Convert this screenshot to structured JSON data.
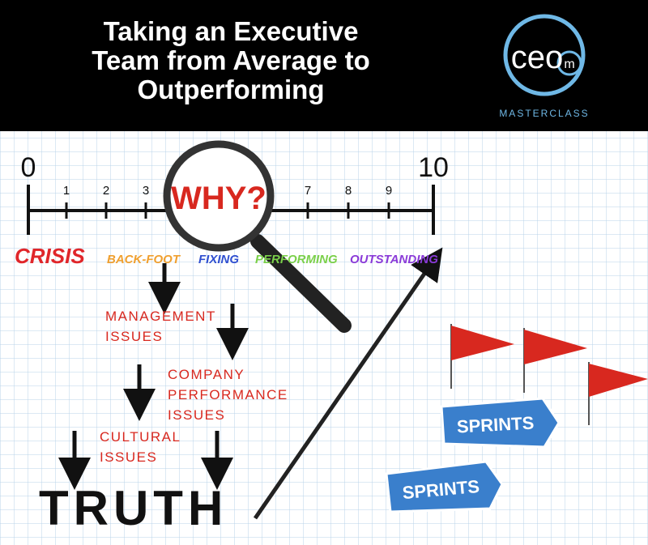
{
  "header": {
    "title_lines": [
      "Taking an Executive",
      "Team from Average to",
      "Outperforming"
    ],
    "logo": "ceo",
    "logo_badge": "m",
    "subtitle": "MASTERCLASS"
  },
  "scale": {
    "labels": [
      "0",
      "1",
      "2",
      "3",
      "7",
      "8",
      "9",
      "10"
    ]
  },
  "magnifier": "WHY?",
  "stages": [
    {
      "label": "CRISIS",
      "color": "#e0262a"
    },
    {
      "label": "BACK-FOOT",
      "color": "#f0a030"
    },
    {
      "label": "FIXING",
      "color": "#2f4fd0"
    },
    {
      "label": "PERFORMING",
      "color": "#7bd04a"
    },
    {
      "label": "OUTSTANDING",
      "color": "#8a3ad8"
    }
  ],
  "issues": [
    {
      "lines": [
        "MANAGEMENT",
        "ISSUES"
      ]
    },
    {
      "lines": [
        "COMPANY",
        "PERFORMANCE",
        "ISSUES"
      ]
    },
    {
      "lines": [
        "CULTURAL",
        "ISSUES"
      ]
    }
  ],
  "truth": "TRUTH",
  "signs": [
    "SPRINTS",
    "SPRINTS"
  ]
}
